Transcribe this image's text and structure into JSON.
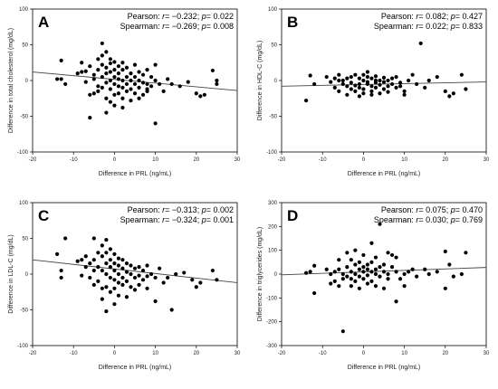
{
  "chart_data": [
    {
      "type": "scatter",
      "letter": "A",
      "xlabel": "Difference in PRL (ng/mL)",
      "ylabel": "Difference in total cholesterol (mg/dL)",
      "xlim": [
        -20,
        30
      ],
      "ylim": [
        -100,
        100
      ],
      "xticks": [
        -20,
        -10,
        0,
        10,
        20,
        30
      ],
      "yticks": [
        -100,
        -50,
        0,
        50,
        100
      ],
      "pearson": {
        "label": "Pearson: ",
        "r_label": "r",
        "r_value": "= −0.232; ",
        "p_label": "p",
        "p_value": "= 0.022"
      },
      "spearman": {
        "label": "Spearman: ",
        "r_label": "r",
        "r_value": "= −0.269; ",
        "p_label": "p",
        "p_value": "= 0.008"
      },
      "trend": {
        "x": [
          -20,
          30
        ],
        "y": [
          12,
          -14
        ]
      },
      "points": [
        [
          -14,
          2
        ],
        [
          -13,
          2
        ],
        [
          -13,
          28
        ],
        [
          -12,
          -5
        ],
        [
          -9,
          10
        ],
        [
          -8,
          12
        ],
        [
          -8,
          25
        ],
        [
          -7,
          13
        ],
        [
          -7,
          -2
        ],
        [
          -6,
          20
        ],
        [
          -6,
          -20
        ],
        [
          -6,
          -52
        ],
        [
          -5,
          8
        ],
        [
          -5,
          -18
        ],
        [
          -5,
          2
        ],
        [
          -4,
          30
        ],
        [
          -4,
          15
        ],
        [
          -4,
          -8
        ],
        [
          -4,
          -15
        ],
        [
          -3,
          52
        ],
        [
          -3,
          35
        ],
        [
          -3,
          22
        ],
        [
          -3,
          5
        ],
        [
          -3,
          -10
        ],
        [
          -2,
          40
        ],
        [
          -2,
          18
        ],
        [
          -2,
          10
        ],
        [
          -2,
          -3
        ],
        [
          -2,
          -25
        ],
        [
          -2,
          -45
        ],
        [
          -1,
          30
        ],
        [
          -1,
          24
        ],
        [
          -1,
          12
        ],
        [
          -1,
          0
        ],
        [
          -1,
          -12
        ],
        [
          -1,
          -30
        ],
        [
          0,
          26
        ],
        [
          0,
          15
        ],
        [
          0,
          5
        ],
        [
          0,
          -5
        ],
        [
          0,
          -20
        ],
        [
          0,
          -35
        ],
        [
          1,
          20
        ],
        [
          1,
          10
        ],
        [
          1,
          2
        ],
        [
          1,
          -8
        ],
        [
          1,
          -18
        ],
        [
          2,
          25
        ],
        [
          2,
          15
        ],
        [
          2,
          0
        ],
        [
          2,
          -10
        ],
        [
          2,
          -25
        ],
        [
          3,
          18
        ],
        [
          3,
          5
        ],
        [
          3,
          -5
        ],
        [
          3,
          -15
        ],
        [
          4,
          10
        ],
        [
          4,
          0
        ],
        [
          4,
          -12
        ],
        [
          5,
          22
        ],
        [
          5,
          5
        ],
        [
          5,
          -5
        ],
        [
          5,
          -18
        ],
        [
          6,
          12
        ],
        [
          6,
          0
        ],
        [
          6,
          -10
        ],
        [
          7,
          8
        ],
        [
          7,
          -3
        ],
        [
          7,
          -20
        ],
        [
          8,
          15
        ],
        [
          8,
          -5
        ],
        [
          8,
          -15
        ],
        [
          9,
          5
        ],
        [
          9,
          -8
        ],
        [
          10,
          22
        ],
        [
          10,
          -60
        ],
        [
          10,
          0
        ],
        [
          11,
          -5
        ],
        [
          12,
          -15
        ],
        [
          13,
          2
        ],
        [
          14,
          -5
        ],
        [
          16,
          -8
        ],
        [
          18,
          -2
        ],
        [
          20,
          -18
        ],
        [
          21,
          -22
        ],
        [
          22,
          -20
        ],
        [
          24,
          14
        ],
        [
          25,
          0
        ],
        [
          25,
          -5
        ],
        [
          8,
          -12
        ],
        [
          6,
          -25
        ],
        [
          4,
          -28
        ],
        [
          2,
          -38
        ]
      ]
    },
    {
      "type": "scatter",
      "letter": "B",
      "xlabel": "Difference in PRL (ng/mL)",
      "ylabel": "Difference in HDL-C (mg/dL)",
      "xlim": [
        -20,
        30
      ],
      "ylim": [
        -100,
        100
      ],
      "xticks": [
        -20,
        -10,
        0,
        10,
        20,
        30
      ],
      "yticks": [
        -100,
        -50,
        0,
        50,
        100
      ],
      "pearson": {
        "label": "Pearson: ",
        "r_label": "r",
        "r_value": "= 0.082; ",
        "p_label": "p",
        "p_value": "= 0.427"
      },
      "spearman": {
        "label": "Spearman: ",
        "r_label": "r",
        "r_value": "= 0.022; ",
        "p_label": "p",
        "p_value": "= 0.833"
      },
      "trend": {
        "x": [
          -20,
          30
        ],
        "y": [
          -8,
          -2
        ]
      },
      "points": [
        [
          -14,
          -28
        ],
        [
          -13,
          7
        ],
        [
          -12,
          -5
        ],
        [
          -9,
          5
        ],
        [
          -8,
          -2
        ],
        [
          -7,
          -10
        ],
        [
          -7,
          3
        ],
        [
          -6,
          -15
        ],
        [
          -6,
          8
        ],
        [
          -5,
          -5
        ],
        [
          -5,
          0
        ],
        [
          -4,
          -8
        ],
        [
          -4,
          3
        ],
        [
          -4,
          -20
        ],
        [
          -3,
          5
        ],
        [
          -3,
          -12
        ],
        [
          -3,
          -3
        ],
        [
          -2,
          8
        ],
        [
          -2,
          -7
        ],
        [
          -2,
          -15
        ],
        [
          -1,
          3
        ],
        [
          -1,
          -5
        ],
        [
          -1,
          -10
        ],
        [
          0,
          0
        ],
        [
          0,
          8
        ],
        [
          0,
          -12
        ],
        [
          0,
          -18
        ],
        [
          1,
          5
        ],
        [
          1,
          -5
        ],
        [
          1,
          -2
        ],
        [
          2,
          3
        ],
        [
          2,
          -8
        ],
        [
          2,
          -15
        ],
        [
          3,
          6
        ],
        [
          3,
          -3
        ],
        [
          3,
          -10
        ],
        [
          4,
          0
        ],
        [
          4,
          -6
        ],
        [
          5,
          4
        ],
        [
          5,
          -2
        ],
        [
          5,
          -12
        ],
        [
          6,
          0
        ],
        [
          6,
          -8
        ],
        [
          7,
          3
        ],
        [
          7,
          -5
        ],
        [
          8,
          -10
        ],
        [
          8,
          5
        ],
        [
          9,
          -3
        ],
        [
          10,
          -15
        ],
        [
          10,
          -20
        ],
        [
          11,
          0
        ],
        [
          12,
          8
        ],
        [
          13,
          -5
        ],
        [
          14,
          52
        ],
        [
          15,
          -10
        ],
        [
          16,
          0
        ],
        [
          18,
          5
        ],
        [
          20,
          -15
        ],
        [
          21,
          -22
        ],
        [
          22,
          -18
        ],
        [
          24,
          8
        ],
        [
          25,
          -12
        ],
        [
          4,
          -18
        ],
        [
          -1,
          -22
        ],
        [
          2,
          -20
        ],
        [
          6,
          -16
        ],
        [
          9,
          -8
        ],
        [
          1,
          12
        ],
        [
          -6,
          0
        ],
        [
          3,
          0
        ]
      ]
    },
    {
      "type": "scatter",
      "letter": "C",
      "xlabel": "Difference in PRL (ng/mL)",
      "ylabel": "Difference in LDL-C (mg/dL)",
      "xlim": [
        -20,
        30
      ],
      "ylim": [
        -100,
        100
      ],
      "xticks": [
        -20,
        -10,
        0,
        10,
        20,
        30
      ],
      "yticks": [
        -100,
        -50,
        0,
        50,
        100
      ],
      "pearson": {
        "label": "Pearson: ",
        "r_label": "r",
        "r_value": "= −0.313; ",
        "p_label": "p",
        "p_value": "= 0.002"
      },
      "spearman": {
        "label": "Spearman: ",
        "r_label": "r",
        "r_value": "= −0.324; ",
        "p_label": "p",
        "p_value": "= 0.001"
      },
      "trend": {
        "x": [
          -20,
          30
        ],
        "y": [
          20,
          -12
        ]
      },
      "points": [
        [
          -14,
          28
        ],
        [
          -13,
          5
        ],
        [
          -13,
          -5
        ],
        [
          -12,
          50
        ],
        [
          -9,
          18
        ],
        [
          -8,
          20
        ],
        [
          -8,
          -2
        ],
        [
          -7,
          25
        ],
        [
          -7,
          10
        ],
        [
          -6,
          15
        ],
        [
          -6,
          -5
        ],
        [
          -5,
          50
        ],
        [
          -5,
          20
        ],
        [
          -5,
          5
        ],
        [
          -5,
          -15
        ],
        [
          -4,
          30
        ],
        [
          -4,
          10
        ],
        [
          -4,
          -10
        ],
        [
          -3,
          40
        ],
        [
          -3,
          25
        ],
        [
          -3,
          5
        ],
        [
          -3,
          -20
        ],
        [
          -2,
          48
        ],
        [
          -2,
          30
        ],
        [
          -2,
          15
        ],
        [
          -2,
          0
        ],
        [
          -2,
          -18
        ],
        [
          -2,
          -52
        ],
        [
          -1,
          35
        ],
        [
          -1,
          20
        ],
        [
          -1,
          10
        ],
        [
          -1,
          -5
        ],
        [
          -1,
          -25
        ],
        [
          0,
          28
        ],
        [
          0,
          15
        ],
        [
          0,
          5
        ],
        [
          0,
          -8
        ],
        [
          0,
          -20
        ],
        [
          1,
          22
        ],
        [
          1,
          12
        ],
        [
          1,
          0
        ],
        [
          1,
          -12
        ],
        [
          1,
          -30
        ],
        [
          2,
          20
        ],
        [
          2,
          8
        ],
        [
          2,
          -5
        ],
        [
          2,
          -15
        ],
        [
          3,
          15
        ],
        [
          3,
          3
        ],
        [
          3,
          -10
        ],
        [
          4,
          12
        ],
        [
          4,
          0
        ],
        [
          4,
          -18
        ],
        [
          5,
          8
        ],
        [
          5,
          -5
        ],
        [
          5,
          -22
        ],
        [
          6,
          10
        ],
        [
          6,
          -2
        ],
        [
          6,
          -15
        ],
        [
          7,
          5
        ],
        [
          7,
          -8
        ],
        [
          8,
          12
        ],
        [
          8,
          -3
        ],
        [
          8,
          -20
        ],
        [
          9,
          0
        ],
        [
          10,
          -5
        ],
        [
          10,
          -38
        ],
        [
          11,
          8
        ],
        [
          12,
          -12
        ],
        [
          13,
          -5
        ],
        [
          14,
          -50
        ],
        [
          15,
          0
        ],
        [
          17,
          2
        ],
        [
          19,
          -8
        ],
        [
          20,
          -18
        ],
        [
          21,
          -12
        ],
        [
          24,
          5
        ],
        [
          25,
          -8
        ],
        [
          3,
          -32
        ],
        [
          -3,
          -35
        ],
        [
          0,
          -42
        ]
      ]
    },
    {
      "type": "scatter",
      "letter": "D",
      "xlabel": "Difference in PRL (ng/mL)",
      "ylabel": "Difference in triglycerides (mg/dL)",
      "xlim": [
        -20,
        30
      ],
      "ylim": [
        -300,
        300
      ],
      "xticks": [
        -20,
        -10,
        0,
        10,
        20,
        30
      ],
      "yticks": [
        -300,
        -200,
        -100,
        0,
        100,
        200,
        300
      ],
      "pearson": {
        "label": "Pearson: ",
        "r_label": "r",
        "r_value": "= 0.075; ",
        "p_label": "p",
        "p_value": "= 0.470"
      },
      "spearman": {
        "label": "Spearman: ",
        "r_label": "r",
        "r_value": "= 0.030; ",
        "p_label": "p",
        "p_value": "= 0.769"
      },
      "trend": {
        "x": [
          -20,
          30
        ],
        "y": [
          -3,
          28
        ]
      },
      "points": [
        [
          -14,
          5
        ],
        [
          -13,
          10
        ],
        [
          -12,
          -80
        ],
        [
          -12,
          35
        ],
        [
          -9,
          20
        ],
        [
          -8,
          0
        ],
        [
          -7,
          10
        ],
        [
          -7,
          -30
        ],
        [
          -6,
          -50
        ],
        [
          -6,
          20
        ],
        [
          -6,
          60
        ],
        [
          -5,
          -240
        ],
        [
          -5,
          0
        ],
        [
          -5,
          -20
        ],
        [
          -4,
          30
        ],
        [
          -4,
          -10
        ],
        [
          -4,
          90
        ],
        [
          -3,
          10
        ],
        [
          -3,
          -20
        ],
        [
          -3,
          60
        ],
        [
          -3,
          -50
        ],
        [
          -2,
          40
        ],
        [
          -2,
          0
        ],
        [
          -2,
          -30
        ],
        [
          -2,
          100
        ],
        [
          -1,
          20
        ],
        [
          -1,
          -10
        ],
        [
          -1,
          50
        ],
        [
          -1,
          -60
        ],
        [
          0,
          10
        ],
        [
          0,
          30
        ],
        [
          0,
          -20
        ],
        [
          0,
          80
        ],
        [
          1,
          20
        ],
        [
          1,
          -5
        ],
        [
          1,
          40
        ],
        [
          1,
          -40
        ],
        [
          2,
          10
        ],
        [
          2,
          50
        ],
        [
          2,
          -30
        ],
        [
          3,
          20
        ],
        [
          3,
          0
        ],
        [
          3,
          70
        ],
        [
          4,
          210
        ],
        [
          4,
          -10
        ],
        [
          4,
          30
        ],
        [
          5,
          -60
        ],
        [
          5,
          10
        ],
        [
          5,
          40
        ],
        [
          6,
          0
        ],
        [
          6,
          -20
        ],
        [
          7,
          30
        ],
        [
          7,
          80
        ],
        [
          8,
          -115
        ],
        [
          8,
          70
        ],
        [
          8,
          10
        ],
        [
          9,
          -20
        ],
        [
          10,
          0
        ],
        [
          10,
          -50
        ],
        [
          11,
          10
        ],
        [
          12,
          20
        ],
        [
          13,
          -10
        ],
        [
          15,
          20
        ],
        [
          16,
          0
        ],
        [
          18,
          10
        ],
        [
          20,
          95
        ],
        [
          20,
          -60
        ],
        [
          21,
          40
        ],
        [
          22,
          -10
        ],
        [
          24,
          0
        ],
        [
          25,
          90
        ],
        [
          -8,
          -40
        ],
        [
          3,
          -50
        ],
        [
          6,
          90
        ],
        [
          2,
          130
        ]
      ]
    }
  ]
}
